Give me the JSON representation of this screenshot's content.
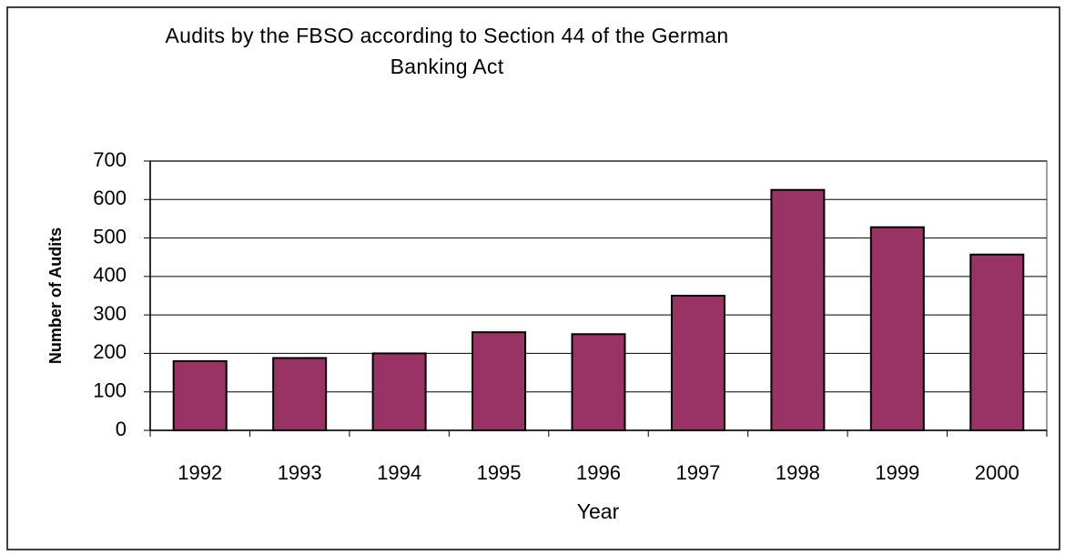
{
  "chart_data": {
    "type": "bar",
    "title": "Audits by the FBSO according to Section 44 of the German Banking Act",
    "x_label": "Year",
    "y_label": "Number of Audits",
    "categories": [
      "1992",
      "1993",
      "1994",
      "1995",
      "1996",
      "1997",
      "1998",
      "1999",
      "2000"
    ],
    "values": [
      180,
      188,
      200,
      255,
      250,
      350,
      625,
      528,
      457
    ],
    "color": "#993366",
    "ylim": [
      0,
      700
    ],
    "yticks": [
      0,
      100,
      200,
      300,
      400,
      500,
      600,
      700
    ],
    "grid": true
  }
}
